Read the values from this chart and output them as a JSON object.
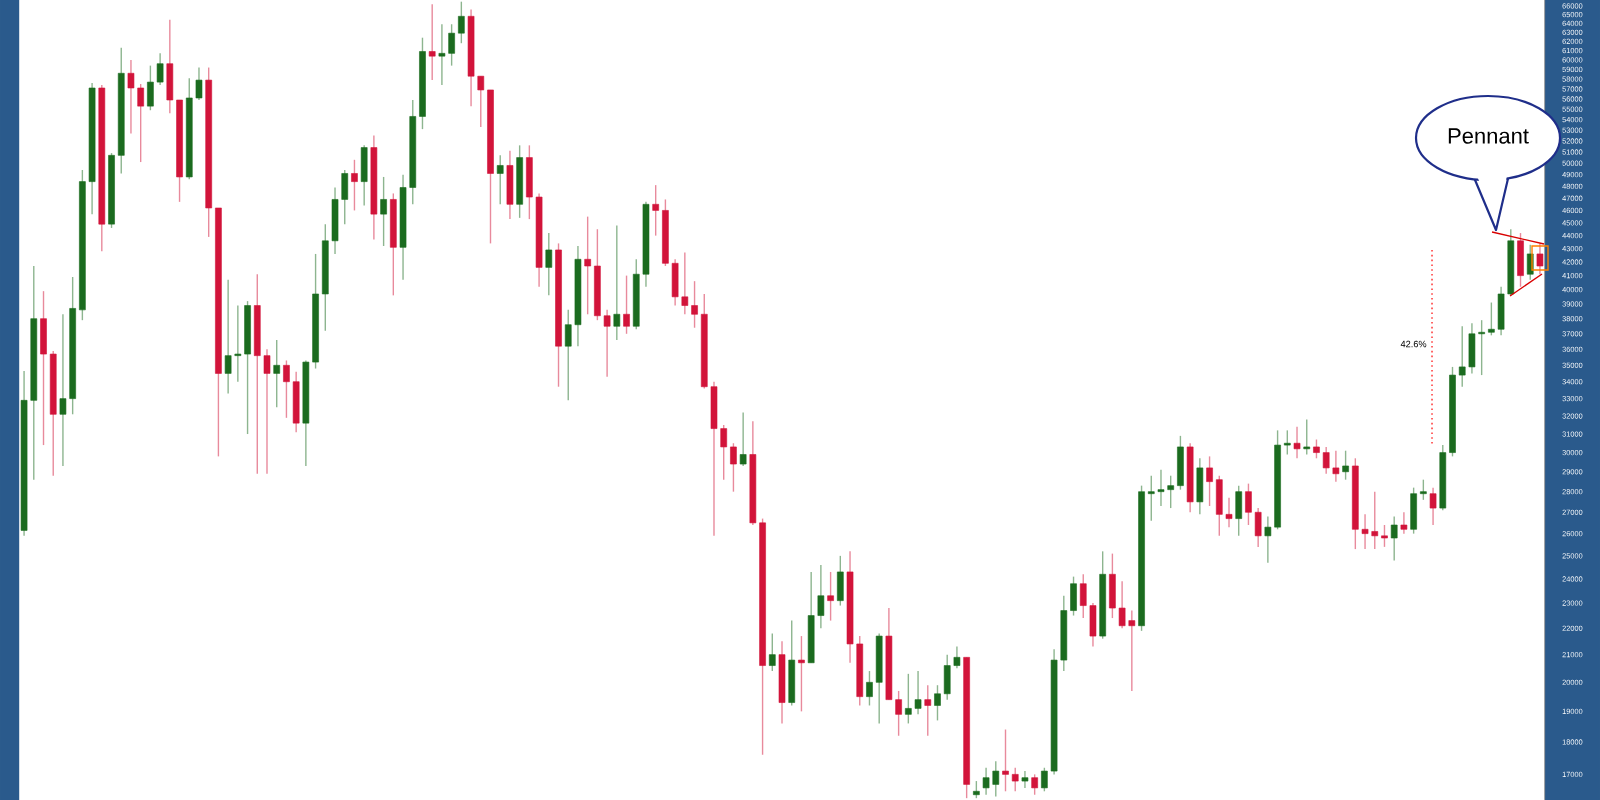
{
  "chart_data": {
    "type": "candlestick",
    "categories": [
      null,
      null,
      null,
      null,
      null,
      null,
      null,
      null,
      null,
      null,
      null,
      null,
      null,
      null,
      null,
      null,
      null,
      null,
      null,
      null,
      null,
      null,
      null,
      null,
      null,
      null,
      null,
      null,
      null,
      null,
      null,
      null,
      null,
      null,
      null,
      null,
      null,
      null,
      null,
      null,
      null,
      null,
      null,
      null,
      null,
      null,
      null,
      null,
      null,
      null,
      null,
      null,
      null,
      null,
      null,
      null,
      null,
      null,
      null,
      null,
      null,
      null,
      null,
      null,
      null,
      null,
      null,
      null,
      null,
      null,
      null,
      null,
      null,
      null,
      null,
      null,
      null,
      null,
      null,
      null,
      null,
      null,
      null,
      null,
      null,
      null,
      null,
      null,
      null,
      null,
      null,
      null,
      null,
      null,
      null,
      null,
      null,
      null,
      null,
      null,
      null,
      null,
      null,
      null,
      null,
      null,
      null,
      null,
      null,
      null,
      null,
      null,
      null,
      null,
      null,
      null,
      null,
      null,
      null,
      null,
      null,
      null,
      null,
      null,
      null,
      null,
      null,
      null,
      null,
      null,
      null,
      null,
      null,
      null,
      null,
      null,
      null,
      null,
      null,
      null,
      null,
      null,
      null,
      null,
      null,
      null,
      null,
      null,
      null,
      null,
      null,
      null,
      null,
      null,
      null,
      null,
      null
    ],
    "ohlc": [
      [
        26150,
        34650,
        25900,
        32900
      ],
      [
        32900,
        41700,
        28600,
        38000
      ],
      [
        38000,
        39900,
        30400,
        35700
      ],
      [
        35700,
        35900,
        28800,
        32100
      ],
      [
        32100,
        38300,
        29300,
        33000
      ],
      [
        33000,
        40900,
        32100,
        38700
      ],
      [
        38600,
        49400,
        37900,
        48400
      ],
      [
        48400,
        57600,
        45700,
        57100
      ],
      [
        57100,
        57400,
        42800,
        44900
      ],
      [
        44900,
        50900,
        44600,
        50700
      ],
      [
        50700,
        61300,
        49100,
        58600
      ],
      [
        58600,
        60000,
        52700,
        57100
      ],
      [
        57100,
        57500,
        50100,
        55300
      ],
      [
        55300,
        59400,
        54900,
        57700
      ],
      [
        57700,
        60700,
        57400,
        59600
      ],
      [
        59600,
        64400,
        54600,
        55900
      ],
      [
        55900,
        55900,
        46700,
        48800
      ],
      [
        48800,
        58100,
        48600,
        56100
      ],
      [
        56100,
        59200,
        55900,
        57900
      ],
      [
        57900,
        59200,
        43900,
        46200
      ],
      [
        46200,
        46200,
        29800,
        34500
      ],
      [
        34500,
        40700,
        33300,
        35600
      ],
      [
        35600,
        38900,
        34000,
        35700
      ],
      [
        35700,
        39200,
        31000,
        38900
      ],
      [
        38900,
        41100,
        28900,
        35600
      ],
      [
        35600,
        36000,
        28900,
        34500
      ],
      [
        34500,
        36600,
        32500,
        35000
      ],
      [
        35000,
        35300,
        31900,
        34000
      ],
      [
        34000,
        34600,
        31100,
        31600
      ],
      [
        31600,
        35300,
        29300,
        35200
      ],
      [
        35200,
        42600,
        34800,
        39700
      ],
      [
        39700,
        44900,
        37200,
        43600
      ],
      [
        43600,
        47900,
        42600,
        46900
      ],
      [
        46900,
        49400,
        44900,
        49100
      ],
      [
        49100,
        50300,
        46000,
        48400
      ],
      [
        48400,
        51600,
        46400,
        51400
      ],
      [
        51400,
        52500,
        43700,
        45700
      ],
      [
        45700,
        48800,
        43200,
        46900
      ],
      [
        46900,
        47400,
        39600,
        43100
      ],
      [
        43100,
        49000,
        40700,
        47900
      ],
      [
        47900,
        55900,
        46500,
        54300
      ],
      [
        54300,
        62400,
        53100,
        60900
      ],
      [
        60900,
        66200,
        57900,
        60400
      ],
      [
        60400,
        63900,
        57400,
        60700
      ],
      [
        60700,
        63900,
        59400,
        62900
      ],
      [
        62900,
        66500,
        61800,
        64800
      ],
      [
        64800,
        65600,
        55300,
        58300
      ],
      [
        58300,
        58300,
        53300,
        56900
      ],
      [
        56900,
        56900,
        43400,
        49100
      ],
      [
        49100,
        50700,
        46500,
        49800
      ],
      [
        49800,
        51100,
        45300,
        46500
      ],
      [
        46500,
        51600,
        45400,
        50500
      ],
      [
        50500,
        51600,
        45300,
        47100
      ],
      [
        47100,
        47400,
        40200,
        41600
      ],
      [
        41600,
        44200,
        39600,
        42900
      ],
      [
        42900,
        43400,
        33700,
        36200
      ],
      [
        36200,
        38600,
        32900,
        37600
      ],
      [
        37600,
        43200,
        36200,
        42200
      ],
      [
        42200,
        45500,
        38300,
        41700
      ],
      [
        41700,
        44500,
        37900,
        38200
      ],
      [
        38200,
        38600,
        34300,
        37500
      ],
      [
        37500,
        44800,
        36600,
        38300
      ],
      [
        38300,
        41000,
        37000,
        37500
      ],
      [
        37500,
        42200,
        37300,
        41100
      ],
      [
        41100,
        46700,
        40200,
        46500
      ],
      [
        46500,
        48100,
        44000,
        46000
      ],
      [
        46000,
        46900,
        41700,
        41900
      ],
      [
        41900,
        42200,
        38900,
        39500
      ],
      [
        39500,
        42700,
        38300,
        38900
      ],
      [
        38900,
        40600,
        37400,
        38300
      ],
      [
        38300,
        39700,
        33600,
        33700
      ],
      [
        33700,
        34000,
        25900,
        31300
      ],
      [
        31300,
        31500,
        28600,
        30300
      ],
      [
        30300,
        30500,
        28000,
        29400
      ],
      [
        29400,
        32200,
        29300,
        29900
      ],
      [
        29900,
        31700,
        26400,
        26500
      ],
      [
        26500,
        26700,
        17600,
        20600
      ],
      [
        20600,
        21800,
        20400,
        21000
      ],
      [
        21000,
        21500,
        18600,
        19300
      ],
      [
        19300,
        22300,
        19200,
        20800
      ],
      [
        20800,
        21700,
        19000,
        20700
      ],
      [
        20700,
        24300,
        20700,
        22500
      ],
      [
        22500,
        24600,
        22000,
        23300
      ],
      [
        23300,
        24300,
        22300,
        23100
      ],
      [
        23100,
        25000,
        22900,
        24300
      ],
      [
        24300,
        25200,
        20700,
        21400
      ],
      [
        21400,
        21700,
        19200,
        19500
      ],
      [
        19500,
        20400,
        19200,
        20000
      ],
      [
        20000,
        21800,
        18600,
        21700
      ],
      [
        21700,
        22800,
        19400,
        19400
      ],
      [
        19400,
        19700,
        18200,
        18900
      ],
      [
        18900,
        20300,
        18600,
        19100
      ],
      [
        19100,
        20400,
        18900,
        19400
      ],
      [
        19400,
        19900,
        18200,
        19200
      ],
      [
        19200,
        19900,
        18700,
        19600
      ],
      [
        19600,
        21000,
        19400,
        20600
      ],
      [
        20600,
        21300,
        20500,
        20900
      ],
      [
        20900,
        20900,
        16300,
        16700
      ],
      [
        16400,
        16800,
        16300,
        16500
      ],
      [
        16600,
        17200,
        16400,
        16900
      ],
      [
        16700,
        17400,
        16350,
        17100
      ],
      [
        17100,
        18400,
        16500,
        17000
      ],
      [
        17000,
        17200,
        16500,
        16800
      ],
      [
        16800,
        17100,
        16600,
        16900
      ],
      [
        16900,
        17000,
        16400,
        16600
      ],
      [
        16600,
        17200,
        16500,
        17100
      ],
      [
        17100,
        21200,
        17000,
        20800
      ],
      [
        20800,
        23300,
        20400,
        22700
      ],
      [
        22700,
        24100,
        22500,
        23800
      ],
      [
        23800,
        24200,
        22400,
        22900
      ],
      [
        22900,
        23000,
        21300,
        21700
      ],
      [
        21700,
        25200,
        21600,
        24200
      ],
      [
        24200,
        25100,
        22400,
        22800
      ],
      [
        22800,
        23900,
        22000,
        22100
      ],
      [
        22300,
        22700,
        19700,
        22100
      ],
      [
        22100,
        28300,
        21900,
        28000
      ],
      [
        27900,
        28800,
        26600,
        28000
      ],
      [
        28000,
        29100,
        27300,
        28100
      ],
      [
        28100,
        28800,
        27200,
        28300
      ],
      [
        28300,
        30900,
        28100,
        30300
      ],
      [
        30300,
        30500,
        27000,
        27500
      ],
      [
        27500,
        29700,
        26900,
        29200
      ],
      [
        29200,
        29800,
        27300,
        28500
      ],
      [
        28600,
        28800,
        25900,
        26900
      ],
      [
        26900,
        27700,
        26300,
        26700
      ],
      [
        26700,
        28300,
        25900,
        28000
      ],
      [
        28000,
        28400,
        26400,
        27000
      ],
      [
        27000,
        27200,
        25400,
        25900
      ],
      [
        25900,
        26800,
        24700,
        26300
      ],
      [
        26300,
        31200,
        26200,
        30400
      ],
      [
        30400,
        31200,
        29900,
        30500
      ],
      [
        30500,
        31400,
        29700,
        30200
      ],
      [
        30200,
        31800,
        29900,
        30300
      ],
      [
        30300,
        30700,
        29700,
        30000
      ],
      [
        30000,
        30300,
        28900,
        29200
      ],
      [
        29200,
        30100,
        28500,
        28900
      ],
      [
        29000,
        30100,
        28600,
        29300
      ],
      [
        29300,
        29700,
        25300,
        26200
      ],
      [
        26200,
        26900,
        25300,
        26000
      ],
      [
        26100,
        28000,
        25300,
        25900
      ],
      [
        25900,
        26400,
        25400,
        25800
      ],
      [
        25800,
        26800,
        24800,
        26400
      ],
      [
        26400,
        27000,
        26000,
        26200
      ],
      [
        26200,
        28200,
        26000,
        27900
      ],
      [
        27900,
        28600,
        27600,
        28000
      ],
      [
        27900,
        28200,
        26400,
        27200
      ],
      [
        27200,
        30400,
        27100,
        30000
      ],
      [
        30000,
        34900,
        29800,
        34400
      ],
      [
        34400,
        37500,
        33700,
        34900
      ],
      [
        34900,
        37700,
        34500,
        37000
      ],
      [
        37000,
        37900,
        34400,
        37100
      ],
      [
        37100,
        39100,
        36900,
        37300
      ],
      [
        37300,
        40200,
        36900,
        39700
      ],
      [
        39700,
        44500,
        39600,
        43600
      ],
      [
        43600,
        44200,
        40200,
        41000
      ],
      [
        41100,
        43300,
        40700,
        42600
      ],
      [
        42600,
        43400,
        41100,
        41700
      ]
    ],
    "log": true,
    "ylim": [
      16250,
      66700
    ],
    "yticks": [
      17000,
      18000,
      19000,
      20000,
      21000,
      22000,
      23000,
      24000,
      25000,
      26000,
      27000,
      28000,
      29000,
      30000,
      31000,
      32000,
      33000,
      34000,
      35000,
      36000,
      37000,
      38000,
      39000,
      40000,
      41000,
      42000,
      43000,
      44000,
      45000,
      46000,
      47000,
      48000,
      49000,
      50000,
      51000,
      52000,
      53000,
      54000,
      55000,
      56000,
      57000,
      58000,
      59000,
      60000,
      61000,
      62000,
      63000,
      64000,
      65000,
      66000
    ],
    "tick_labels": "y",
    "annotations": [
      "Pennant",
      "42.6%"
    ]
  }
}
